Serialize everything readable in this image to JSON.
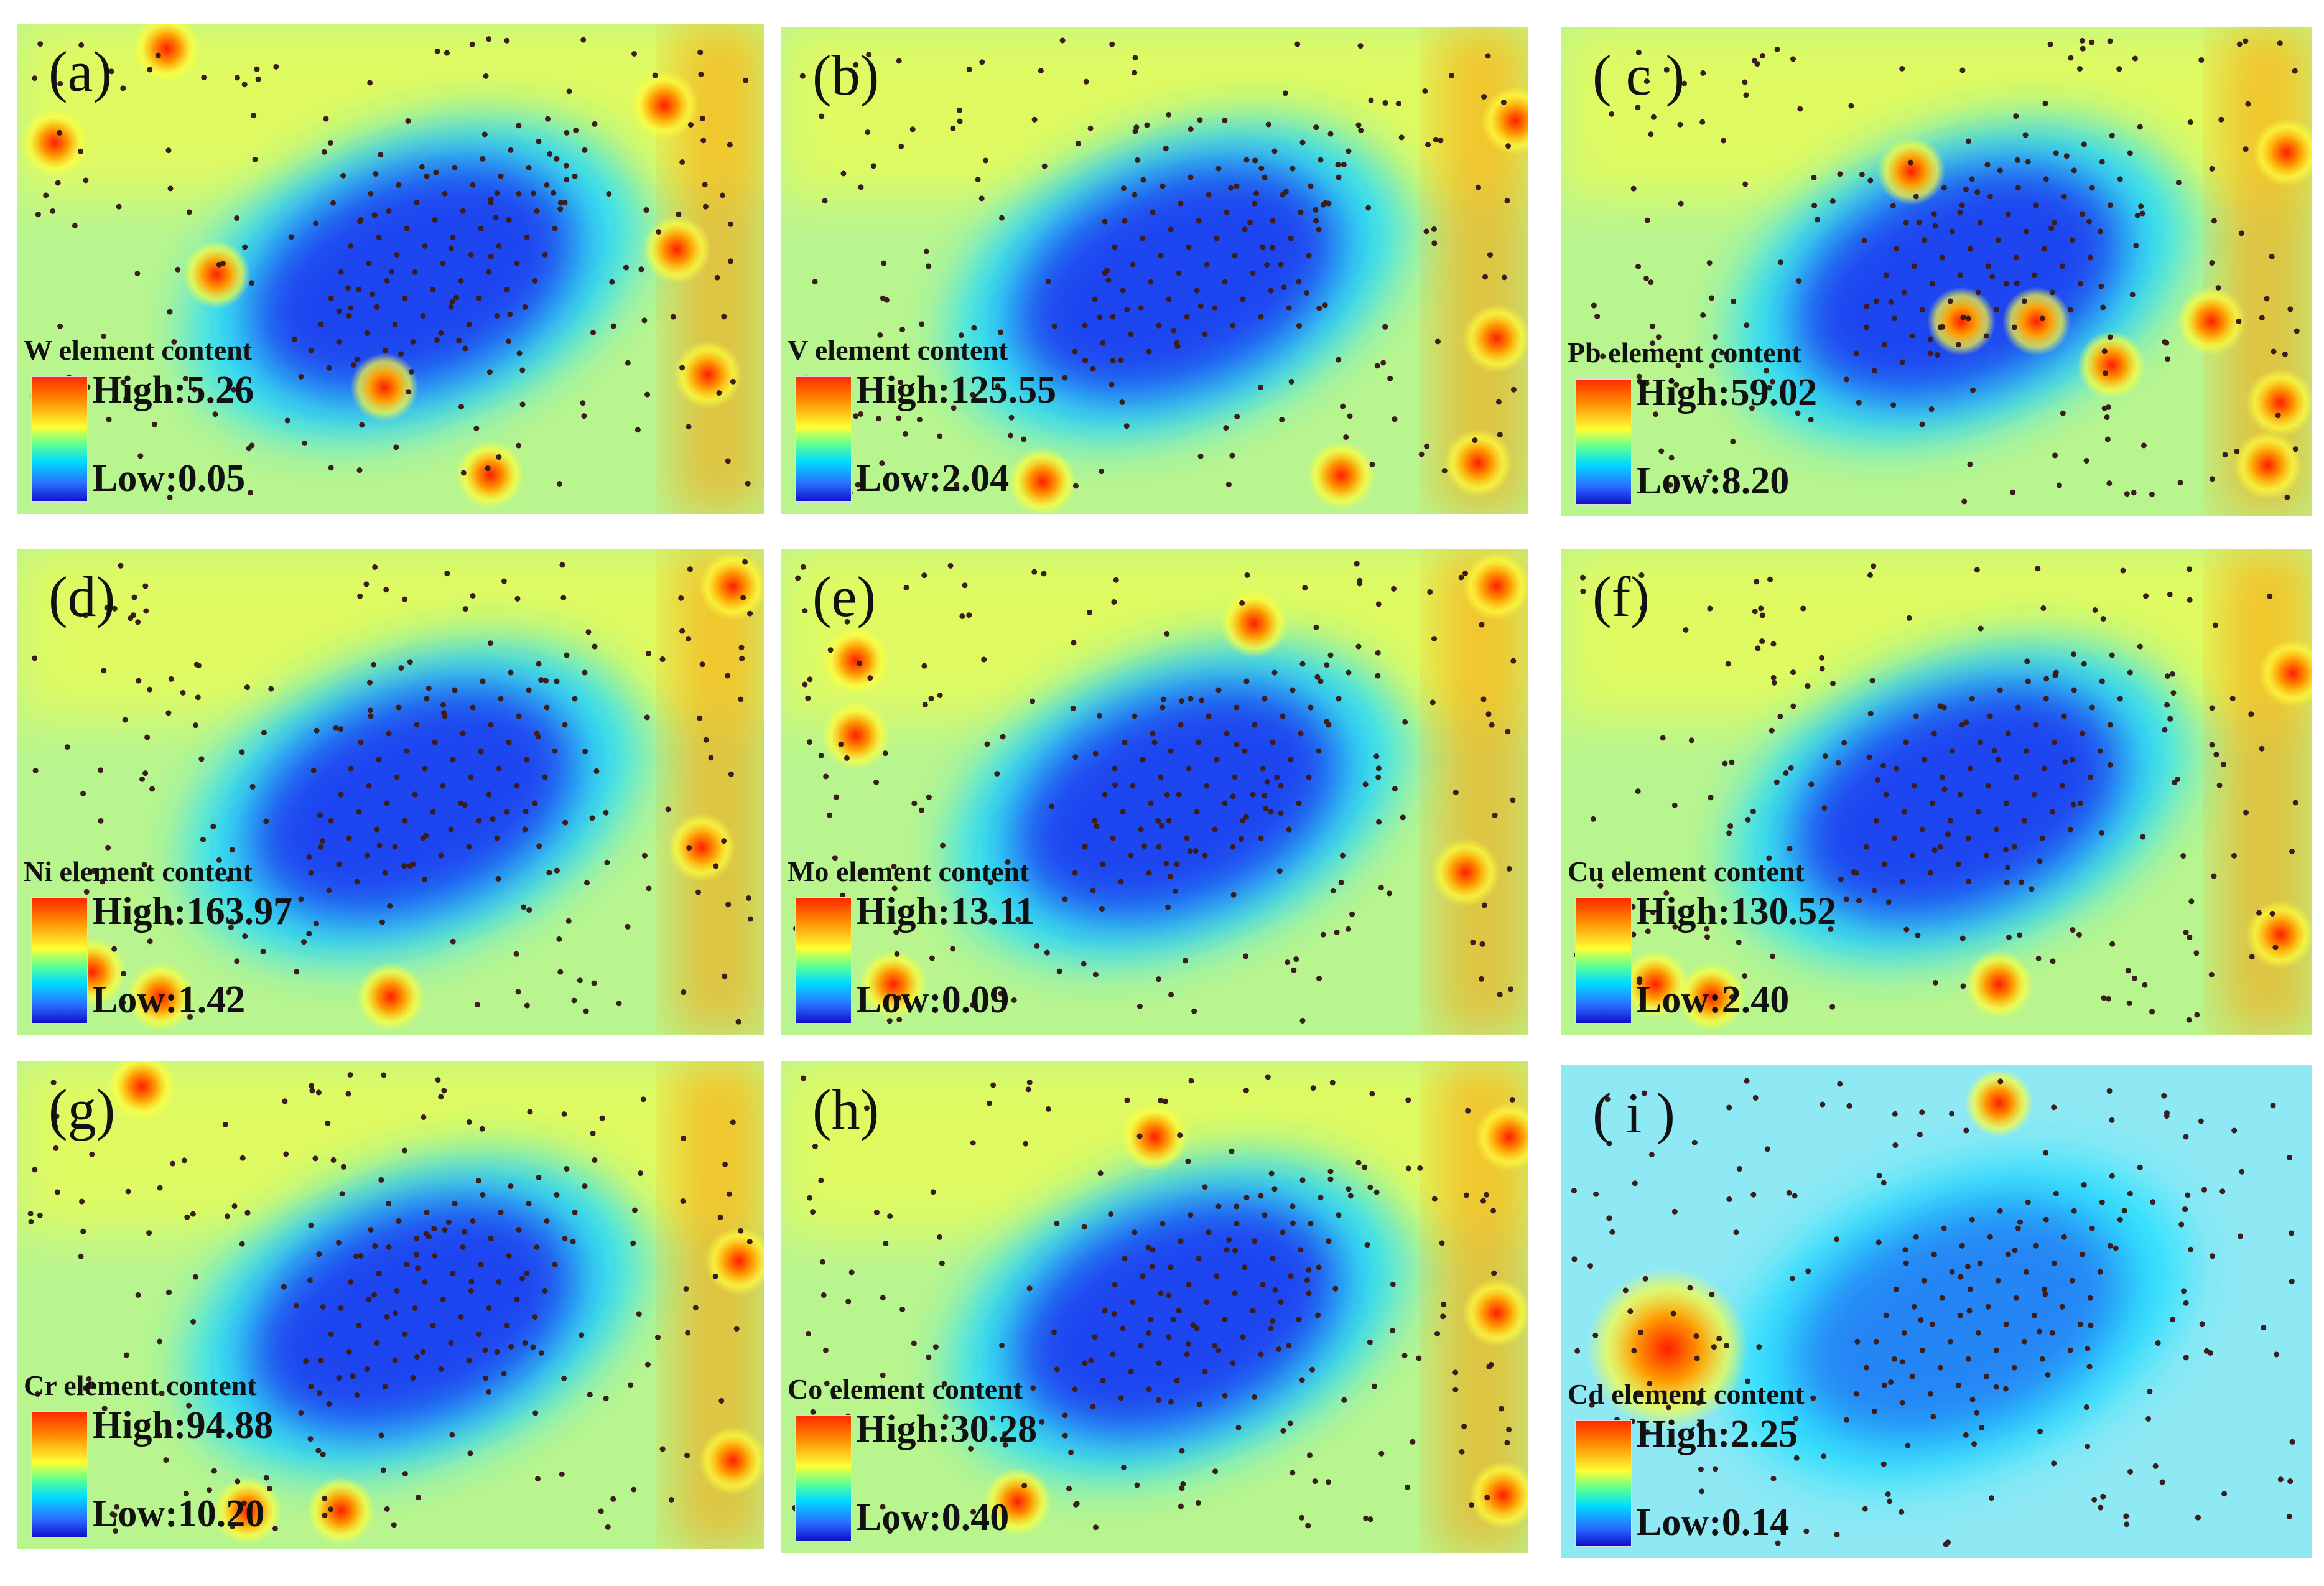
{
  "figure": {
    "colors": {
      "high": "#ff1e00",
      "orange": "#ff9a00",
      "mid": "#ffff3c",
      "background": "#b9f58e",
      "cyan": "#25e0ff",
      "low": "#1f3cf0",
      "sample_point": "#3a1d1d"
    },
    "panels": [
      {
        "label": "(a)",
        "legend": {
          "title": "W element content",
          "high": "High:5.26",
          "low": "Low:0.05"
        }
      },
      {
        "label": "(b)",
        "legend": {
          "title": "V element content",
          "high": "High:125.55",
          "low": "Low:2.04"
        }
      },
      {
        "label": "( c )",
        "legend": {
          "title": "Pb element content",
          "high": "High:59.02",
          "low": "Low:8.20"
        }
      },
      {
        "label": "(d)",
        "legend": {
          "title": "Ni element content",
          "high": "High:163.97",
          "low": "Low:1.42"
        }
      },
      {
        "label": "(e)",
        "legend": {
          "title": "Mo element content",
          "high": "High:13.11",
          "low": "Low:0.09"
        }
      },
      {
        "label": "(f)",
        "legend": {
          "title": "Cu element content",
          "high": "High:130.52",
          "low": "Low:2.40"
        }
      },
      {
        "label": "(g)",
        "legend": {
          "title": "Cr element content",
          "high": "High:94.88",
          "low": "Low:10.20"
        }
      },
      {
        "label": "(h)",
        "legend": {
          "title": "Co element content",
          "high": "High:30.28",
          "low": "Low:0.40"
        }
      },
      {
        "label": "( i )",
        "legend": {
          "title": "Cd element content",
          "high": "High:2.25",
          "low": "Low:0.14"
        }
      }
    ]
  }
}
